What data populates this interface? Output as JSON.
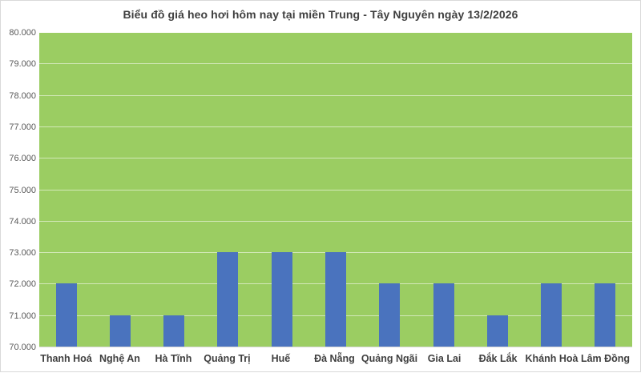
{
  "chart_data": {
    "type": "bar",
    "title": "Biểu đồ giá heo hơi hôm nay tại miền Trung - Tây Nguyên ngày 13/2/2026",
    "categories": [
      "Thanh Hoá",
      "Nghệ An",
      "Hà Tĩnh",
      "Quảng Trị",
      "Huế",
      "Đà Nẵng",
      "Quảng Ngãi",
      "Gia Lai",
      "Đắk Lắk",
      "Khánh Hoà",
      "Lâm Đồng"
    ],
    "values": [
      72000,
      71000,
      71000,
      73000,
      73000,
      73000,
      72000,
      72000,
      71000,
      72000,
      72000
    ],
    "xlabel": "",
    "ylabel": "",
    "ylim": [
      70000,
      80000
    ],
    "ytick_values": [
      70000,
      71000,
      72000,
      73000,
      74000,
      75000,
      76000,
      77000,
      78000,
      79000,
      80000
    ],
    "ytick_labels": [
      "70.000",
      "71.000",
      "72.000",
      "73.000",
      "74.000",
      "75.000",
      "76.000",
      "77.000",
      "78.000",
      "79.000",
      "80.000"
    ],
    "grid": "horizontal gridlines on, drawn light over plot background",
    "legend": "none",
    "colors": {
      "bar": "#4a73be",
      "plot_background": "#9bcd62",
      "page_background": "#ffffff",
      "frame_border": "#d9d9d9",
      "title_text": "#3f3f3f",
      "y_tick_text": "#595959",
      "x_tick_text": "#3f3f3f"
    }
  }
}
